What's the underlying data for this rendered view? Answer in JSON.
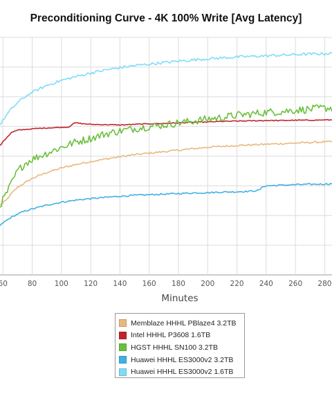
{
  "chart_data": {
    "type": "line",
    "title": "Preconditioning Curve - 4K 100% Write [Avg Latency]",
    "xlabel": "Minutes",
    "ylabel": "",
    "x_ticks": [
      60,
      80,
      100,
      120,
      140,
      160,
      180,
      200,
      220,
      240,
      260,
      280
    ],
    "xlim": [
      58,
      285
    ],
    "ylim": [
      0,
      8
    ],
    "grid": true,
    "legend_position": "bottom-center",
    "series": [
      {
        "name": "Memblaze HHHL PBlaze4 3.2TB",
        "color": "#e8b97e",
        "x": [
          58,
          62,
          66,
          70,
          75,
          80,
          90,
          100,
          110,
          120,
          130,
          140,
          150,
          160,
          170,
          180,
          190,
          200,
          210,
          220,
          230,
          240,
          250,
          260,
          270,
          280,
          285
        ],
        "y": [
          2.35,
          2.5,
          2.75,
          2.95,
          3.1,
          3.25,
          3.45,
          3.6,
          3.72,
          3.82,
          3.9,
          3.98,
          4.05,
          4.1,
          4.15,
          4.2,
          4.25,
          4.3,
          4.33,
          4.36,
          4.38,
          4.4,
          4.42,
          4.44,
          4.46,
          4.48,
          4.48
        ],
        "noise": 0.03
      },
      {
        "name": "Intel HHHL P3608 1.6TB",
        "color": "#c0242b",
        "x": [
          58,
          60,
          63,
          66,
          70,
          75,
          80,
          90,
          100,
          105,
          108,
          110,
          115,
          120,
          130,
          140,
          150,
          160,
          170,
          180,
          190,
          200,
          210,
          220,
          230,
          240,
          250,
          260,
          270,
          280,
          285
        ],
        "y": [
          4.35,
          4.48,
          4.65,
          4.8,
          4.87,
          4.9,
          4.92,
          4.95,
          4.97,
          4.98,
          5.1,
          5.12,
          5.09,
          5.07,
          5.06,
          5.05,
          5.07,
          5.09,
          5.1,
          5.12,
          5.14,
          5.15,
          5.17,
          5.18,
          5.19,
          5.2,
          5.2,
          5.21,
          5.21,
          5.22,
          5.22
        ],
        "noise": 0.015
      },
      {
        "name": "HGST HHHL SN100 3.2TB",
        "color": "#6abf3c",
        "x": [
          58,
          62,
          66,
          70,
          75,
          80,
          90,
          100,
          110,
          120,
          130,
          140,
          150,
          160,
          170,
          180,
          190,
          200,
          210,
          220,
          230,
          240,
          250,
          260,
          270,
          280,
          285
        ],
        "y": [
          2.35,
          2.7,
          3.1,
          3.5,
          3.75,
          3.9,
          4.1,
          4.3,
          4.48,
          4.6,
          4.75,
          4.85,
          4.93,
          5.0,
          5.05,
          5.12,
          5.18,
          5.25,
          5.3,
          5.38,
          5.42,
          5.48,
          5.5,
          5.55,
          5.58,
          5.62,
          5.62
        ],
        "noise": 0.13
      },
      {
        "name": "Huawei HHHL ES3000v2 3.2TB",
        "color": "#3fb0e2",
        "x": [
          58,
          60,
          65,
          70,
          75,
          80,
          90,
          100,
          110,
          120,
          130,
          140,
          150,
          160,
          170,
          180,
          190,
          200,
          210,
          220,
          230,
          235,
          238,
          240,
          250,
          260,
          270,
          280,
          285
        ],
        "y": [
          1.65,
          1.75,
          1.92,
          2.05,
          2.15,
          2.22,
          2.35,
          2.45,
          2.52,
          2.57,
          2.61,
          2.65,
          2.68,
          2.7,
          2.72,
          2.74,
          2.76,
          2.77,
          2.79,
          2.8,
          2.82,
          2.85,
          2.98,
          3.0,
          3.02,
          3.04,
          3.05,
          3.06,
          3.07
        ],
        "noise": 0.025
      },
      {
        "name": "Huawei HHHL ES3000v2 1.6TB",
        "color": "#7fdcf7",
        "x": [
          58,
          62,
          66,
          70,
          75,
          80,
          90,
          100,
          110,
          120,
          130,
          140,
          150,
          160,
          170,
          180,
          190,
          200,
          210,
          220,
          230,
          240,
          250,
          260,
          270,
          280,
          285
        ],
        "y": [
          5.05,
          5.35,
          5.6,
          5.8,
          6.0,
          6.15,
          6.38,
          6.55,
          6.68,
          6.8,
          6.9,
          6.98,
          7.05,
          7.1,
          7.15,
          7.2,
          7.24,
          7.28,
          7.31,
          7.34,
          7.36,
          7.38,
          7.4,
          7.42,
          7.44,
          7.45,
          7.46
        ],
        "noise": 0.045
      }
    ]
  }
}
